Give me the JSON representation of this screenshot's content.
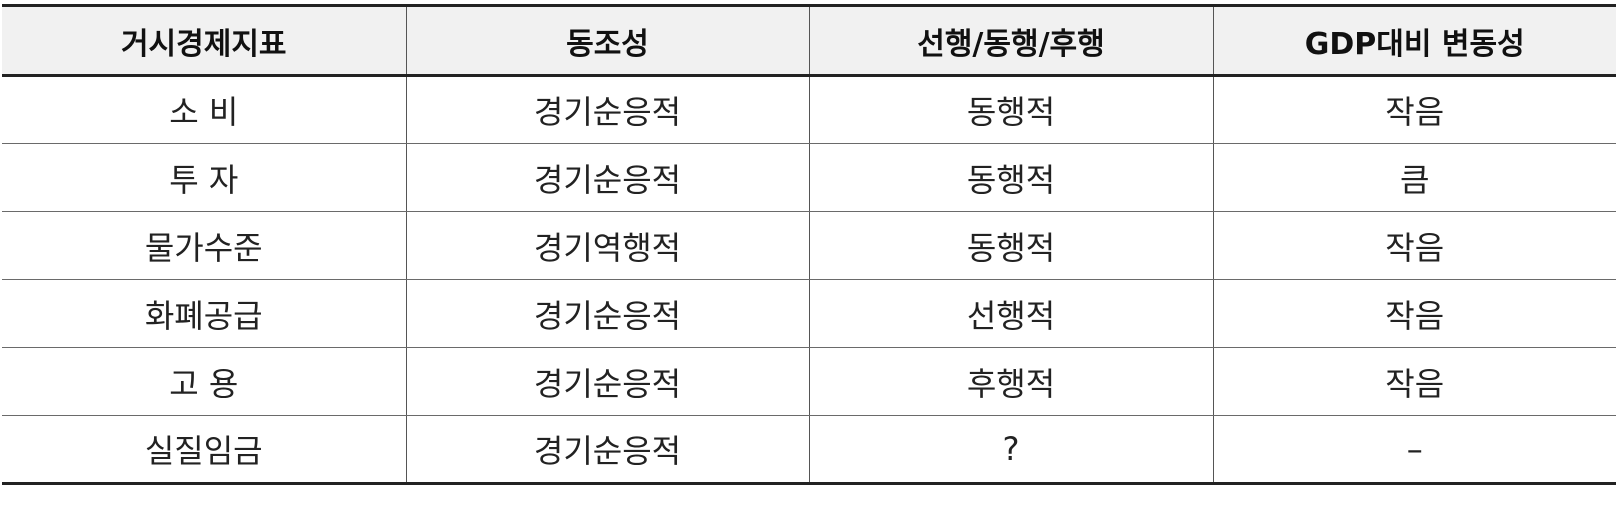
{
  "table": {
    "headers": [
      "거시경제지표",
      "동조성",
      "선행/동행/후행",
      "GDP대비 변동성"
    ],
    "rows": [
      [
        "소 비",
        "경기순응적",
        "동행적",
        "작음"
      ],
      [
        "투 자",
        "경기순응적",
        "동행적",
        "큼"
      ],
      [
        "물가수준",
        "경기역행적",
        "동행적",
        "작음"
      ],
      [
        "화폐공급",
        "경기순응적",
        "선행적",
        "작음"
      ],
      [
        "고 용",
        "경기순응적",
        "후행적",
        "작음"
      ],
      [
        "실질임금",
        "경기순응적",
        "?",
        "–"
      ]
    ]
  }
}
